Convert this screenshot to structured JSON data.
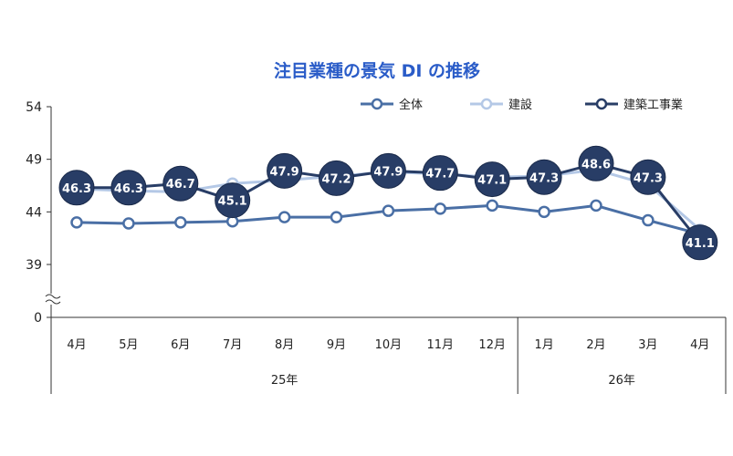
{
  "chart_data": {
    "type": "line",
    "title": "注目業種の景気 DI の推移",
    "categories": [
      "4月",
      "5月",
      "6月",
      "7月",
      "8月",
      "9月",
      "10月",
      "11月",
      "12月",
      "1月",
      "2月",
      "3月",
      "4月"
    ],
    "year_groups": [
      {
        "label": "25年",
        "count": 9
      },
      {
        "label": "26年",
        "count": 4
      }
    ],
    "y_ticks": [
      "54",
      "49",
      "44",
      "39",
      "0"
    ],
    "y_tick_values": [
      54,
      49,
      44,
      39
    ],
    "ylim": [
      34,
      54
    ],
    "axis_break": true,
    "legend_position": "top-right",
    "series": [
      {
        "name": "全体",
        "color": "#4a6fa5",
        "values": [
          43.0,
          42.9,
          43.0,
          43.1,
          43.5,
          43.5,
          44.1,
          44.3,
          44.6,
          44.0,
          44.6,
          43.2,
          41.9
        ]
      },
      {
        "name": "建設",
        "color": "#b4c8e6",
        "values": [
          46.2,
          46.0,
          45.9,
          46.7,
          47.0,
          47.4,
          47.8,
          47.6,
          47.3,
          47.4,
          48.0,
          46.6,
          42.3
        ]
      },
      {
        "name": "建築工事業",
        "color": "#283d66",
        "values": [
          46.3,
          46.3,
          46.7,
          45.1,
          47.9,
          47.2,
          47.9,
          47.7,
          47.1,
          47.3,
          48.6,
          47.3,
          41.1
        ]
      }
    ],
    "data_labels_series": "建築工事業",
    "data_labels": [
      "46.3",
      "46.3",
      "46.7",
      "45.1",
      "47.9",
      "47.2",
      "47.9",
      "47.7",
      "47.1",
      "47.3",
      "48.6",
      "47.3",
      "41.1"
    ],
    "title_color": "#2a5cc8"
  }
}
